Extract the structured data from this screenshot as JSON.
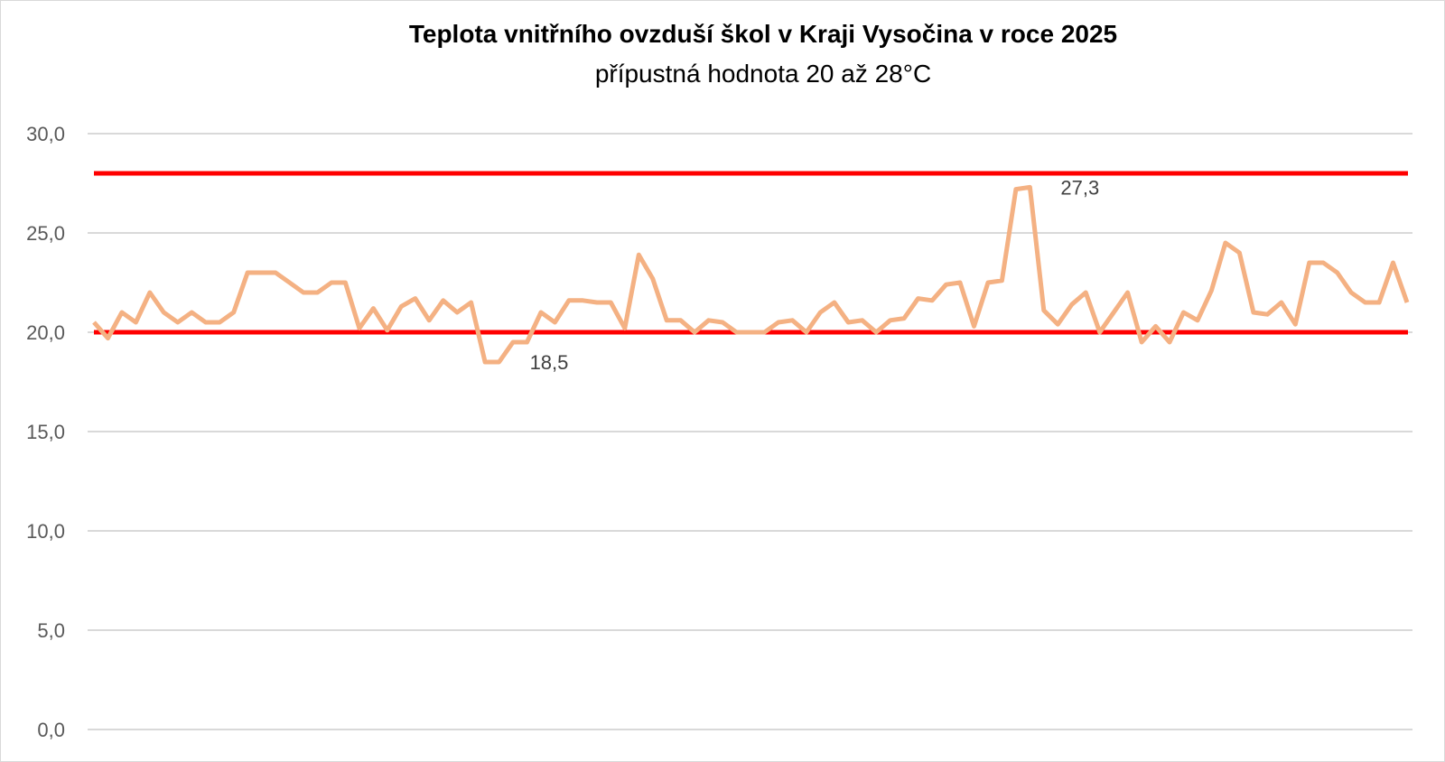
{
  "chart_data": {
    "type": "line",
    "title": "Teplota vnitřního ovzduší škol v Kraji Vysočina v roce 2025",
    "subtitle": "přípustná hodnota 20 až 28°C",
    "xlabel": "",
    "ylabel": "",
    "ylim": [
      0,
      30
    ],
    "y_ticks": [
      "0,0",
      "5,0",
      "10,0",
      "15,0",
      "20,0",
      "25,0",
      "30,0"
    ],
    "y_tick_values": [
      0,
      5,
      10,
      15,
      20,
      25,
      30
    ],
    "grid": true,
    "colors": {
      "series": "#f4b183",
      "limits": "#ff0000",
      "grid": "#d9d9d9"
    },
    "series": [
      {
        "values": [
          20.5,
          19.7,
          21.0,
          20.5,
          22.0,
          21.0,
          20.5,
          21.0,
          20.5,
          20.5,
          21.0,
          23.0,
          23.0,
          23.0,
          22.5,
          22.0,
          22.0,
          22.5,
          22.5,
          20.2,
          21.2,
          20.1,
          21.3,
          21.7,
          20.6,
          21.6,
          21.0,
          21.5,
          18.5,
          18.5,
          19.5,
          19.5,
          21.0,
          20.5,
          21.6,
          21.6,
          21.5,
          21.5,
          20.2,
          23.9,
          22.7,
          20.6,
          20.6,
          20.0,
          20.6,
          20.5,
          20.0,
          20.0,
          20.0,
          20.5,
          20.6,
          20.0,
          21.0,
          21.5,
          20.5,
          20.6,
          20.0,
          20.6,
          20.7,
          21.7,
          21.6,
          22.4,
          22.5,
          20.3,
          22.5,
          22.6,
          27.2,
          27.3,
          21.1,
          20.4,
          21.4,
          22.0,
          20.0,
          21.0,
          22.0,
          19.5,
          20.3,
          19.5,
          21.0,
          20.6,
          22.1,
          24.5,
          24.0,
          21.0,
          20.9,
          21.5,
          20.4,
          23.5,
          23.5,
          23.0,
          22.0,
          21.5,
          21.5,
          23.5,
          21.5
        ]
      }
    ],
    "reference_lines": [
      {
        "value": 28
      },
      {
        "value": 20
      }
    ],
    "annotations": [
      {
        "text": "27,3",
        "index": 67
      },
      {
        "text": "18,5",
        "index": 29
      }
    ]
  }
}
